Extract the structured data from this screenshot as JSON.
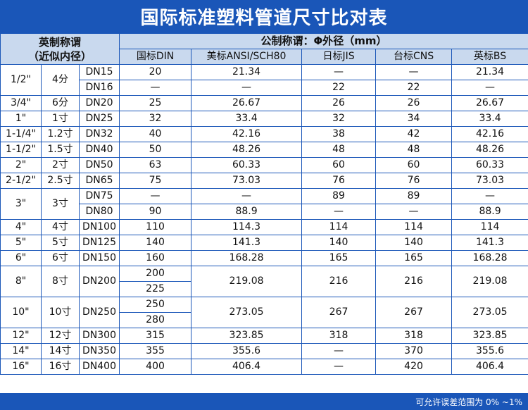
{
  "title": "国际标准塑料管道尺寸比对表",
  "header": {
    "imperial_line1": "英制称谓",
    "imperial_line2": "（近似内径）",
    "metric": "公制称谓：Φ外径（mm）",
    "cols": [
      "国标DIN",
      "美标ANSI/SCH80",
      "日标JIS",
      "台标CNS",
      "英标BS"
    ]
  },
  "rows": [
    {
      "inch": "1/2\"",
      "cun": "4分",
      "dn": [
        "DN15",
        "DN16"
      ],
      "din": [
        "20",
        "—"
      ],
      "ansi": [
        "21.34",
        "—"
      ],
      "jis": [
        "—",
        "22"
      ],
      "cns": [
        "—",
        "22"
      ],
      "bs": [
        "21.34",
        "—"
      ]
    },
    {
      "inch": "3/4\"",
      "cun": "6分",
      "dn": [
        "DN20"
      ],
      "din": [
        "25"
      ],
      "ansi": "26.67",
      "jis": "26",
      "cns": "26",
      "bs": "26.67"
    },
    {
      "inch": "1\"",
      "cun": "1寸",
      "dn": [
        "DN25"
      ],
      "din": [
        "32"
      ],
      "ansi": "33.4",
      "jis": "32",
      "cns": "34",
      "bs": "33.4"
    },
    {
      "inch": "1-1/4\"",
      "cun": "1.2寸",
      "dn": [
        "DN32"
      ],
      "din": [
        "40"
      ],
      "ansi": "42.16",
      "jis": "38",
      "cns": "42",
      "bs": "42.16"
    },
    {
      "inch": "1-1/2\"",
      "cun": "1.5寸",
      "dn": [
        "DN40"
      ],
      "din": [
        "50"
      ],
      "ansi": "48.26",
      "jis": "48",
      "cns": "48",
      "bs": "48.26"
    },
    {
      "inch": "2\"",
      "cun": "2寸",
      "dn": [
        "DN50"
      ],
      "din": [
        "63"
      ],
      "ansi": "60.33",
      "jis": "60",
      "cns": "60",
      "bs": "60.33"
    },
    {
      "inch": "2-1/2\"",
      "cun": "2.5寸",
      "dn": [
        "DN65"
      ],
      "din": [
        "75"
      ],
      "ansi": "73.03",
      "jis": "76",
      "cns": "76",
      "bs": "73.03"
    },
    {
      "inch": "3\"",
      "cun": "3寸",
      "dn": [
        "DN75",
        "DN80"
      ],
      "din": [
        "—",
        "90"
      ],
      "ansi": [
        "—",
        "88.9"
      ],
      "jis": [
        "89",
        "—"
      ],
      "cns": [
        "89",
        "—"
      ],
      "bs": [
        "—",
        "88.9"
      ]
    },
    {
      "inch": "4\"",
      "cun": "4寸",
      "dn": [
        "DN100"
      ],
      "din": [
        "110"
      ],
      "ansi": "114.3",
      "jis": "114",
      "cns": "114",
      "bs": "114"
    },
    {
      "inch": "5\"",
      "cun": "5寸",
      "dn": [
        "DN125"
      ],
      "din": [
        "140"
      ],
      "ansi": "141.3",
      "jis": "140",
      "cns": "140",
      "bs": "141.3"
    },
    {
      "inch": "6\"",
      "cun": "6寸",
      "dn": [
        "DN150"
      ],
      "din": [
        "160"
      ],
      "ansi": "168.28",
      "jis": "165",
      "cns": "165",
      "bs": "168.28"
    },
    {
      "inch": "8\"",
      "cun": "8寸",
      "dn": [
        "DN200"
      ],
      "din": [
        "200",
        "225"
      ],
      "ansi": "219.08",
      "jis": "216",
      "cns": "216",
      "bs": "219.08"
    },
    {
      "inch": "10\"",
      "cun": "10寸",
      "dn": [
        "DN250"
      ],
      "din": [
        "250",
        "280"
      ],
      "ansi": "273.05",
      "jis": "267",
      "cns": "267",
      "bs": "273.05"
    },
    {
      "inch": "12\"",
      "cun": "12寸",
      "dn": [
        "DN300"
      ],
      "din": [
        "315"
      ],
      "ansi": "323.85",
      "jis": "318",
      "cns": "318",
      "bs": "323.85"
    },
    {
      "inch": "14\"",
      "cun": "14寸",
      "dn": [
        "DN350"
      ],
      "din": [
        "355"
      ],
      "ansi": "355.6",
      "jis": "—",
      "cns": "370",
      "bs": "355.6"
    },
    {
      "inch": "16\"",
      "cun": "16寸",
      "dn": [
        "DN400"
      ],
      "din": [
        "400"
      ],
      "ansi": "406.4",
      "jis": "—",
      "cns": "420",
      "bs": "406.4"
    }
  ],
  "footer": "可允许误差范围为 0% ~1%",
  "colors": {
    "brand_blue": "#1a56b8",
    "header_bg": "#c9d9ee"
  }
}
